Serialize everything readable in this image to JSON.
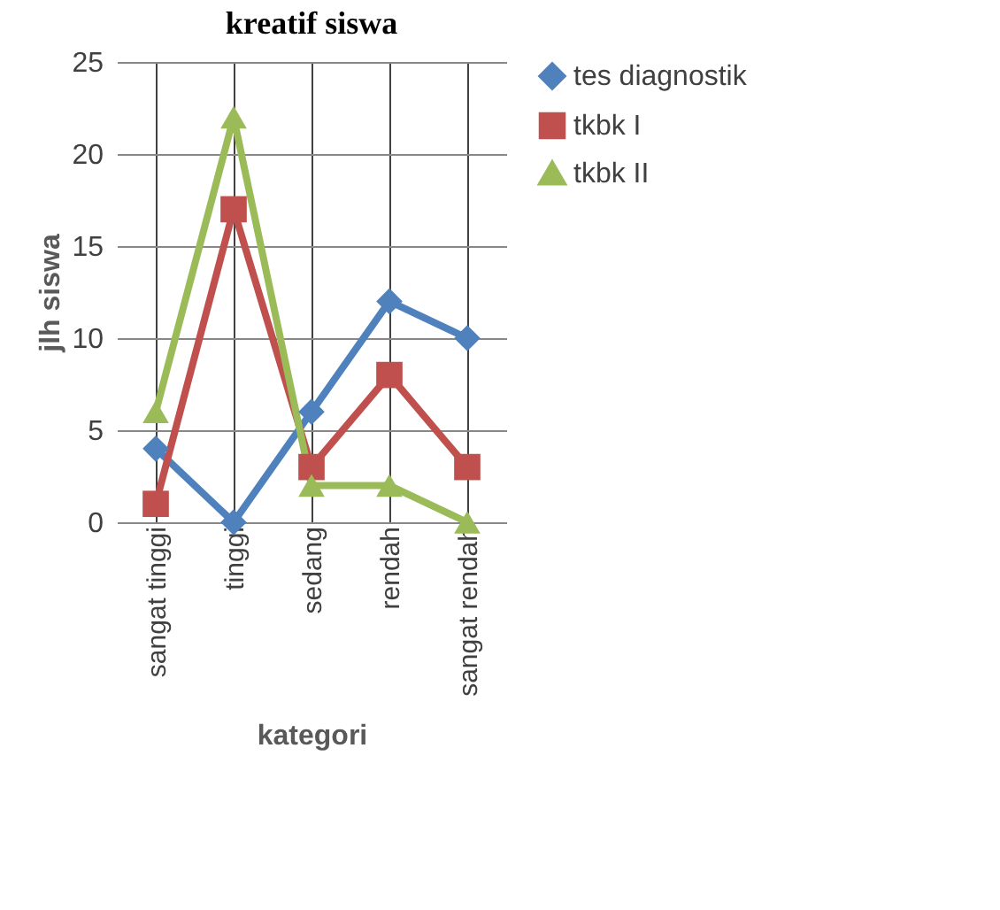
{
  "chart_data": {
    "type": "line",
    "title": "kreatif siswa",
    "xlabel": "kategori",
    "ylabel": "jlh siswa",
    "categories": [
      "sangat tinggi",
      "tinggi",
      "sedang",
      "rendah",
      "sangat rendah"
    ],
    "series": [
      {
        "name": "tes diagnostik",
        "color": "#4f81bd",
        "marker": "diamond",
        "values": [
          4,
          0,
          6,
          12,
          10
        ]
      },
      {
        "name": "tkbk I",
        "color": "#c0504d",
        "marker": "square",
        "values": [
          1,
          17,
          3,
          8,
          3
        ]
      },
      {
        "name": "tkbk II",
        "color": "#9bbb59",
        "marker": "triangle",
        "values": [
          6,
          22,
          2,
          2,
          0
        ]
      }
    ],
    "ylim": [
      0,
      25
    ],
    "yticks": [
      0,
      5,
      10,
      15,
      20,
      25
    ],
    "grid": true,
    "legend": "right"
  }
}
